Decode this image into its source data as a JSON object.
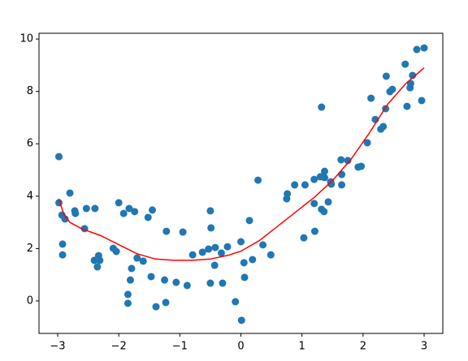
{
  "chart_data": {
    "type": "scatter",
    "xlim": [
      -3.306,
      3.306
    ],
    "ylim": [
      -1.24,
      10.22
    ],
    "xticks": [
      {
        "value": -3,
        "label": "−3"
      },
      {
        "value": -2,
        "label": "−2"
      },
      {
        "value": -1,
        "label": "−1"
      },
      0,
      1,
      2,
      3
    ],
    "yticks": [
      0,
      2,
      4,
      6,
      8,
      10
    ],
    "series": [
      {
        "type": "scatter",
        "color": "#1f77b4",
        "x": [
          -2.98,
          -2.98,
          -2.93,
          -2.88,
          -2.92,
          -2.92,
          -2.8,
          -2.72,
          -2.71,
          -2.56,
          -2.53,
          -2.39,
          -2.4,
          -2.33,
          -2.31,
          -2.35,
          -2.09,
          -2.04,
          -2.0,
          -1.92,
          -1.83,
          -1.74,
          -1.7,
          -1.6,
          -1.79,
          -1.81,
          -1.85,
          -1.85,
          -1.52,
          -1.45,
          -1.47,
          -1.39,
          -1.25,
          -1.23,
          -1.22,
          -1.06,
          -0.95,
          -0.88,
          -0.79,
          -0.63,
          -0.53,
          -0.5,
          -0.49,
          -0.5,
          -0.43,
          -0.42,
          -0.32,
          -0.3,
          -0.22,
          -0.09,
          0.0,
          0.01,
          0.05,
          0.06,
          0.14,
          0.19,
          0.28,
          0.36,
          0.49,
          0.75,
          0.76,
          0.88,
          1.03,
          1.05,
          1.2,
          1.21,
          1.2,
          1.3,
          1.32,
          1.32,
          1.36,
          1.37,
          1.37,
          1.43,
          1.47,
          1.48,
          1.64,
          1.65,
          1.65,
          1.75,
          1.92,
          1.97,
          2.07,
          2.13,
          2.2,
          2.29,
          2.33,
          2.37,
          2.38,
          2.44,
          2.48,
          2.69,
          2.72,
          2.77,
          2.78,
          2.81,
          2.88,
          2.96,
          3.0
        ],
        "values": [
          5.51,
          3.75,
          3.28,
          3.13,
          2.17,
          1.76,
          4.12,
          3.44,
          3.34,
          2.76,
          3.53,
          3.53,
          1.55,
          1.73,
          1.55,
          1.3,
          2.01,
          1.89,
          3.75,
          3.34,
          3.53,
          3.41,
          1.64,
          1.52,
          1.24,
          0.8,
          0.25,
          -0.09,
          3.19,
          3.47,
          0.93,
          -0.22,
          0.8,
          -0.06,
          2.66,
          0.71,
          2.63,
          0.59,
          1.76,
          1.86,
          1.98,
          3.44,
          2.79,
          0.68,
          1.36,
          2.04,
          1.83,
          0.68,
          2.07,
          -0.03,
          2.26,
          -0.74,
          1.46,
          0.9,
          3.07,
          1.58,
          4.61,
          2.14,
          1.76,
          3.9,
          4.09,
          4.43,
          2.41,
          4.43,
          4.64,
          2.66,
          3.72,
          4.74,
          7.4,
          3.5,
          3.41,
          4.95,
          4.71,
          3.78,
          4.55,
          4.46,
          5.39,
          4.83,
          4.43,
          5.36,
          5.11,
          5.14,
          6.04,
          7.74,
          6.93,
          6.56,
          6.66,
          7.34,
          8.58,
          7.99,
          8.08,
          9.04,
          7.43,
          8.14,
          8.3,
          8.61,
          9.6,
          7.65,
          9.66
        ]
      },
      {
        "type": "line",
        "color": "#ff0000",
        "x": [
          -2.98,
          -2.9,
          -2.8,
          -2.6,
          -2.3,
          -2.0,
          -1.7,
          -1.4,
          -1.1,
          -0.8,
          -0.5,
          -0.2,
          0.0,
          0.3,
          0.6,
          0.9,
          1.2,
          1.5,
          1.8,
          2.1,
          2.4,
          2.7,
          3.0
        ],
        "values": [
          3.9,
          3.3,
          3.0,
          2.75,
          2.5,
          2.15,
          1.8,
          1.6,
          1.55,
          1.55,
          1.6,
          1.75,
          1.9,
          2.3,
          2.85,
          3.4,
          3.95,
          4.6,
          5.4,
          6.4,
          7.5,
          8.3,
          8.9
        ]
      }
    ]
  }
}
